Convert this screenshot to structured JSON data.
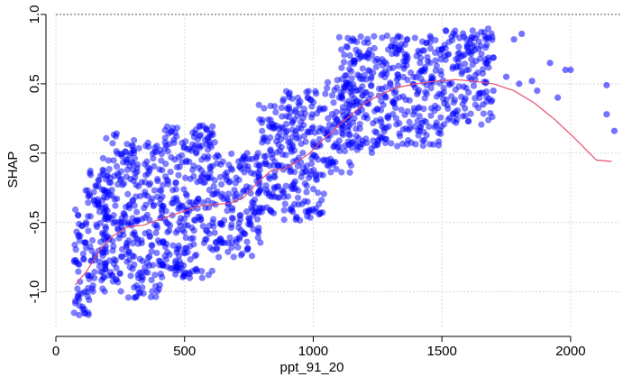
{
  "chart_data": {
    "type": "scatter",
    "title": "",
    "xlabel": "ppt_91_20",
    "ylabel": "SHAP",
    "xlim": [
      0,
      2200
    ],
    "ylim": [
      -1.25,
      1.0
    ],
    "xticks": [
      0,
      500,
      1000,
      1500,
      2000
    ],
    "yticks": [
      -1.0,
      -0.5,
      0.0,
      0.5,
      1.0
    ],
    "xtick_labels": [
      "0",
      "500",
      "1000",
      "1500",
      "2000"
    ],
    "ytick_labels": [
      "-1.0",
      "-0.5",
      "0.0",
      "0.5",
      "1.0"
    ],
    "grid": true,
    "colors": {
      "points": "#0000ff",
      "smooth": "#e8506e",
      "grid": "#d9d9d9"
    },
    "series": [
      {
        "kind": "points",
        "clusters": [
          {
            "x": [
              70,
              130
            ],
            "y": [
              -1.2,
              -0.25
            ]
          },
          {
            "x": [
              130,
              200
            ],
            "y": [
              -1.0,
              -0.1
            ]
          },
          {
            "x": [
              180,
              240
            ],
            "y": [
              -0.95,
              0.15
            ]
          },
          {
            "x": [
              240,
              420
            ],
            "y": [
              -1.05,
              0.1
            ]
          },
          {
            "x": [
              420,
              620
            ],
            "y": [
              -0.9,
              0.2
            ]
          },
          {
            "x": [
              620,
              800
            ],
            "y": [
              -0.75,
              0.0
            ]
          },
          {
            "x": [
              780,
              880
            ],
            "y": [
              -0.45,
              0.35
            ]
          },
          {
            "x": [
              880,
              1050
            ],
            "y": [
              -0.5,
              0.45
            ]
          },
          {
            "x": [
              1050,
              1150
            ],
            "y": [
              -0.15,
              0.55
            ]
          },
          {
            "x": [
              1100,
              1300
            ],
            "y": [
              0.0,
              0.85
            ]
          },
          {
            "x": [
              1300,
              1500
            ],
            "y": [
              0.05,
              0.85
            ]
          },
          {
            "x": [
              1500,
              1700
            ],
            "y": [
              0.2,
              0.9
            ]
          }
        ],
        "outliers": [
          {
            "x": 1660,
            "y": 0.35
          },
          {
            "x": 1700,
            "y": 0.45
          },
          {
            "x": 1750,
            "y": 0.55
          },
          {
            "x": 1800,
            "y": 0.5
          },
          {
            "x": 1850,
            "y": 0.52
          },
          {
            "x": 1870,
            "y": 0.45
          },
          {
            "x": 1920,
            "y": 0.65
          },
          {
            "x": 1980,
            "y": 0.6
          },
          {
            "x": 1950,
            "y": 0.4
          },
          {
            "x": 2000,
            "y": 0.6
          },
          {
            "x": 2140,
            "y": 0.49
          },
          {
            "x": 2140,
            "y": 0.28
          },
          {
            "x": 2170,
            "y": 0.16
          },
          {
            "x": 1780,
            "y": 0.82
          },
          {
            "x": 1810,
            "y": 0.86
          }
        ]
      },
      {
        "kind": "smooth",
        "x": [
          75,
          120,
          170,
          220,
          280,
          340,
          400,
          480,
          560,
          620,
          680,
          730,
          790,
          840,
          880,
          920,
          980,
          1040,
          1100,
          1150,
          1200,
          1260,
          1320,
          1400,
          1480,
          1550,
          1620,
          1700,
          1780,
          1860,
          1940,
          2020,
          2100,
          2160
        ],
        "y": [
          -0.95,
          -0.85,
          -0.7,
          -0.6,
          -0.53,
          -0.52,
          -0.48,
          -0.43,
          -0.38,
          -0.37,
          -0.36,
          -0.32,
          -0.2,
          -0.12,
          -0.12,
          -0.08,
          -0.01,
          0.1,
          0.2,
          0.28,
          0.36,
          0.42,
          0.47,
          0.5,
          0.52,
          0.53,
          0.52,
          0.5,
          0.45,
          0.36,
          0.24,
          0.1,
          -0.05,
          -0.06
        ]
      }
    ]
  }
}
